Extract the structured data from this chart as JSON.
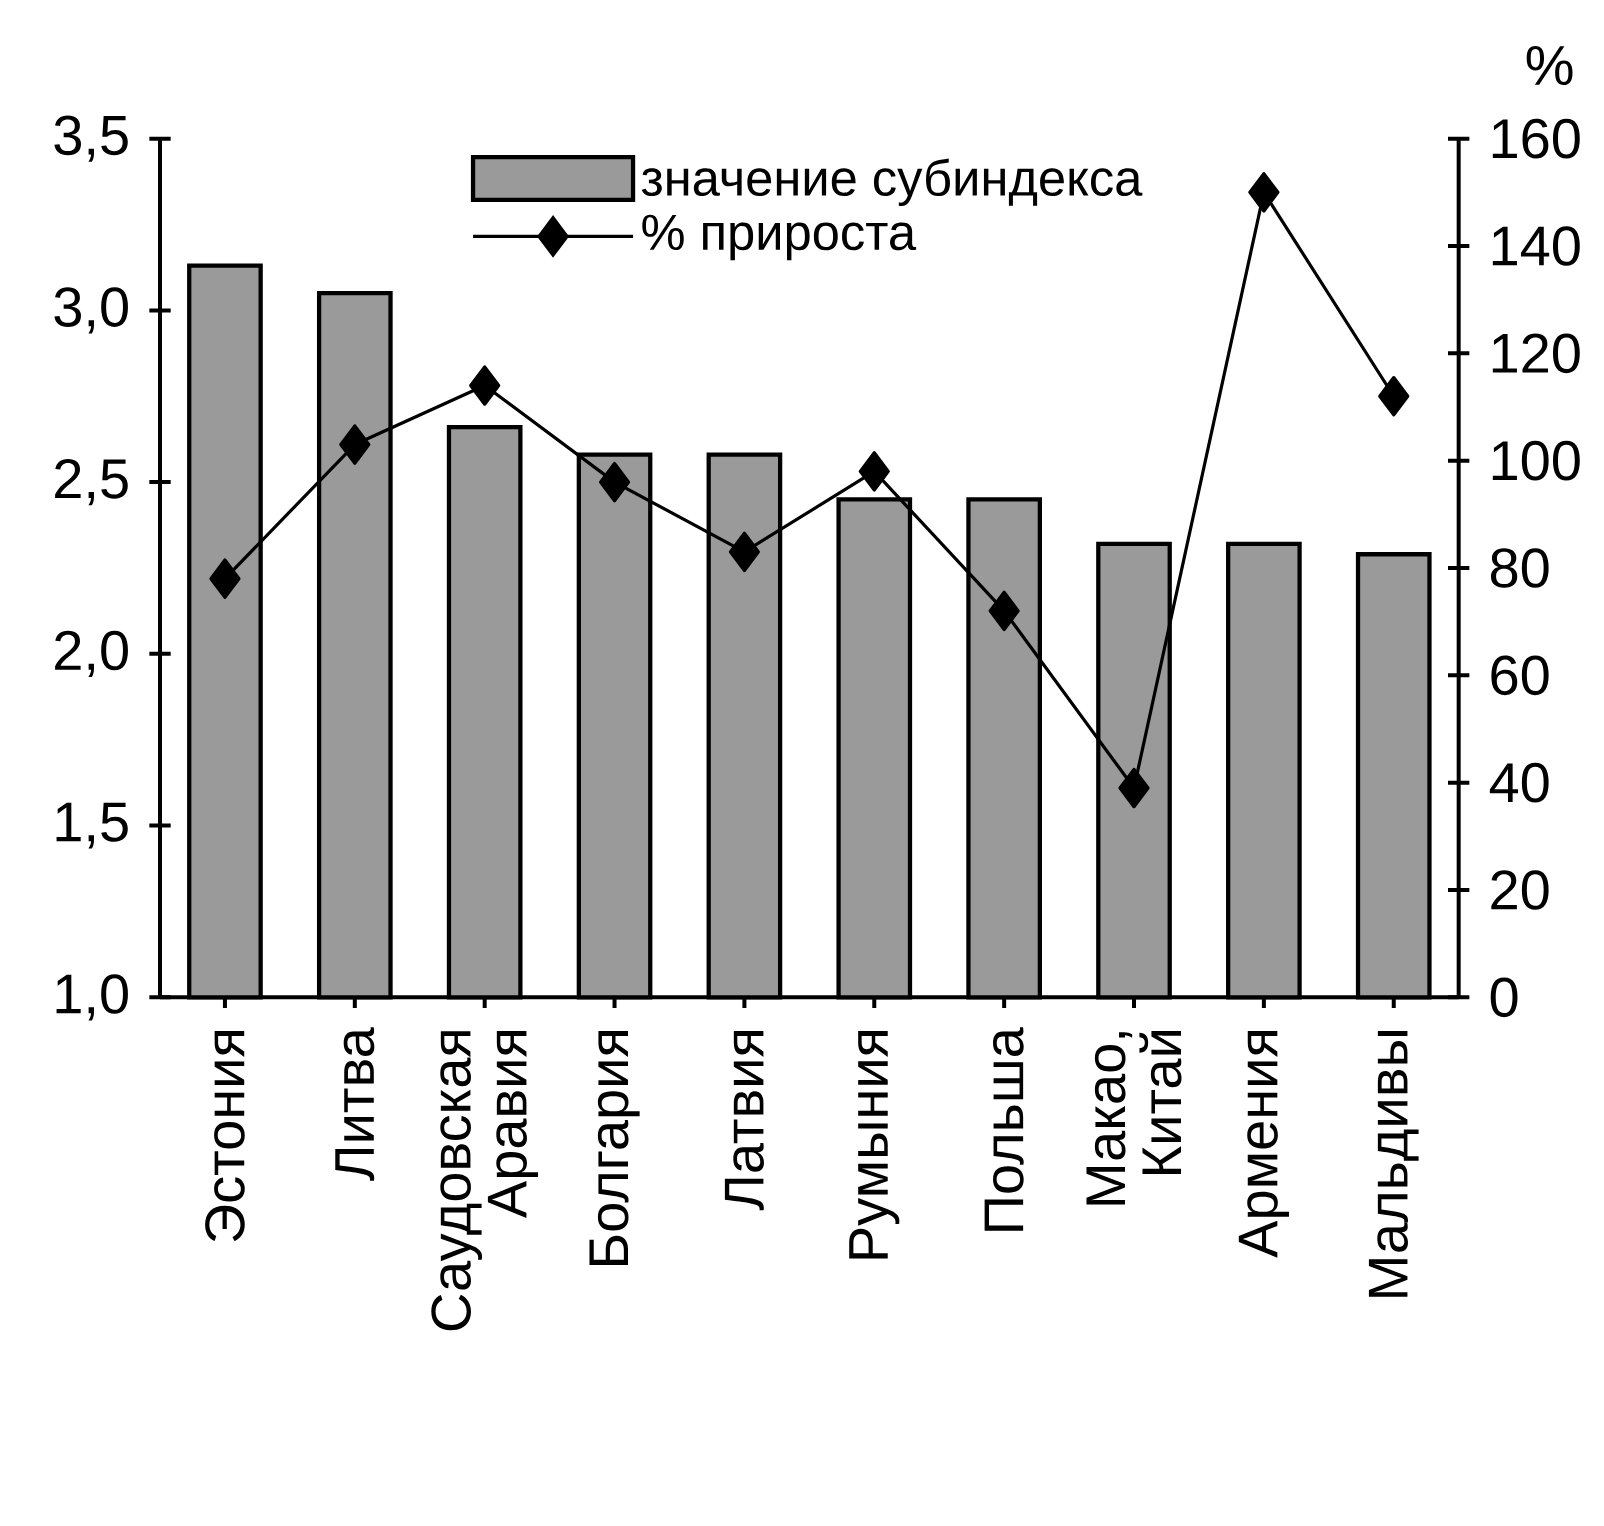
{
  "chart_data": {
    "type": "bar",
    "categories": [
      "Эстония",
      "Литва",
      "Саудовская Аравия",
      "Болгария",
      "Латвия",
      "Румыния",
      "Польша",
      "Макао, Китай",
      "Армения",
      "Мальдивы"
    ],
    "series": [
      {
        "name": "значение субиндекса",
        "color": "#9a9a9a",
        "values": [
          3.13,
          3.05,
          2.66,
          2.58,
          2.58,
          2.45,
          2.45,
          2.32,
          2.32,
          2.29
        ]
      },
      {
        "name": "% прироста",
        "type": "line",
        "axis": "y2",
        "color": "#000000",
        "values": [
          78,
          103,
          114,
          96,
          83,
          98,
          72,
          39,
          150,
          112
        ]
      }
    ],
    "ylim": [
      1,
      3.5
    ],
    "yticks": [
      {
        "value": 1.0,
        "label": "1,0"
      },
      {
        "value": 1.5,
        "label": "1,5"
      },
      {
        "value": 2.0,
        "label": "2,0"
      },
      {
        "value": 2.5,
        "label": "2,5"
      },
      {
        "value": 3.0,
        "label": "3,0"
      },
      {
        "value": 3.5,
        "label": "3,5"
      }
    ],
    "y2lim": [
      0,
      160
    ],
    "y2ticks": [
      0,
      20,
      40,
      60,
      80,
      100,
      120,
      140,
      160
    ],
    "y2label": "%",
    "legend": "top",
    "marker": "diamond"
  }
}
